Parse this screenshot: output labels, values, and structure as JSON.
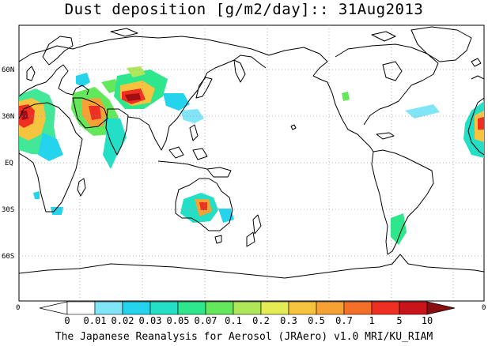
{
  "title": "Dust deposition [g/m2/day]:: 31Aug2013",
  "credit": "The Japanese Reanalysis for Aerosol (JRAero) v1.0 MRI/KU_RIAM",
  "lat_labels": [
    {
      "label": "60N",
      "lat": 60
    },
    {
      "label": "30N",
      "lat": 30
    },
    {
      "label": "EQ",
      "lat": 0
    },
    {
      "label": "30S",
      "lat": -30
    },
    {
      "label": "60S",
      "lat": -60
    }
  ],
  "colorbar": {
    "left_end_label": "0",
    "right_end_label": "0",
    "levels": [
      "0",
      "0.01",
      "0.02",
      "0.03",
      "0.05",
      "0.07",
      "0.1",
      "0.2",
      "0.3",
      "0.5",
      "0.7",
      "1",
      "5",
      "10"
    ],
    "colors": [
      "#ffffff",
      "#ffffff",
      "#7fe5f7",
      "#24d3ec",
      "#22dfc6",
      "#2ee68c",
      "#62e85a",
      "#aee859",
      "#e3ec55",
      "#f6c33e",
      "#f6a134",
      "#f46f27",
      "#ef2f21",
      "#c8141a",
      "#a10f12",
      "#7a0a0c"
    ],
    "over_color": "#8a0d10",
    "under_color": "#ffffff"
  },
  "map": {
    "projection": "equirectangular",
    "lon_range": [
      -20,
      340
    ],
    "lat_range": [
      -90,
      90
    ],
    "grid": true,
    "coast_color": "#000000"
  }
}
